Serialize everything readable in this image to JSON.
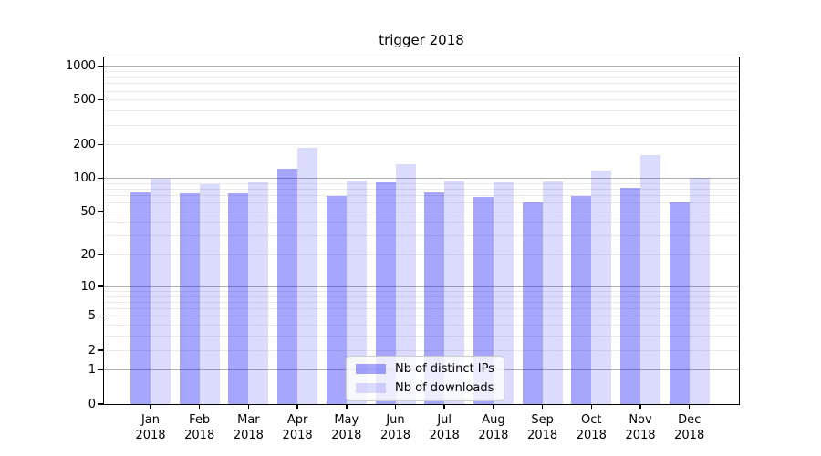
{
  "title": "trigger 2018",
  "chart_data": {
    "type": "bar",
    "title": "trigger 2018",
    "categories": [
      "Jan",
      "Feb",
      "Mar",
      "Apr",
      "May",
      "Jun",
      "Jul",
      "Aug",
      "Sep",
      "Oct",
      "Nov",
      "Dec"
    ],
    "x_year_label": "2018",
    "series": [
      {
        "name": "Nb of distinct IPs",
        "color": "rgba(0,0,245,0.35)",
        "values": [
          75,
          74,
          74,
          122,
          69,
          93,
          75,
          68,
          61,
          69,
          82,
          61
        ]
      },
      {
        "name": "Nb of downloads",
        "color": "rgba(0,0,245,0.14)",
        "values": [
          100,
          88,
          93,
          187,
          95,
          134,
          95,
          93,
          94,
          118,
          161,
          102
        ]
      }
    ],
    "y_axis": {
      "scale": "log1p",
      "min": 0,
      "max": 1200,
      "labeled_ticks": [
        0,
        1,
        2,
        5,
        10,
        20,
        50,
        100,
        200,
        500,
        1000
      ],
      "major_grid_ticks": [
        1,
        10,
        100,
        1000
      ],
      "minor_grid_ticks": [
        2,
        3,
        4,
        5,
        6,
        7,
        8,
        9,
        20,
        30,
        40,
        50,
        60,
        70,
        80,
        90,
        200,
        300,
        400,
        500,
        600,
        700,
        800,
        900
      ]
    },
    "legend": {
      "position": "lower center",
      "items": [
        "Nb of distinct IPs",
        "Nb of downloads"
      ]
    },
    "colors": {
      "background": "#ffffff",
      "axis": "#000000",
      "text": "#000000",
      "major_grid": "#b0b0b0",
      "minor_grid": "#eaeaea",
      "bar_distinct_ips": "rgba(0,0,245,0.35)",
      "bar_downloads": "rgba(0,0,245,0.14)"
    },
    "grid": "both",
    "xlabel": "",
    "ylabel": ""
  }
}
